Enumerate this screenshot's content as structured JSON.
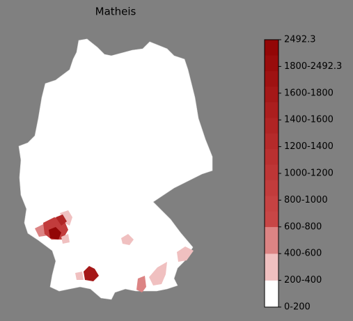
{
  "chart_data": {
    "type": "choropleth",
    "title": "Matheis",
    "colorbar": {
      "labels": [
        "0-200",
        "200-400",
        "400-600",
        "600-800",
        "800-1000",
        "1000-1200",
        "1200-1400",
        "1400-1600",
        "1600-1800",
        "1800-2492.3",
        "2492.3"
      ],
      "colors": [
        "#ffffff",
        "#f0c0c0",
        "#dc8484",
        "#c84646",
        "#c64242",
        "#c23c3c",
        "#be3636",
        "#ba3030",
        "#b52a2a",
        "#b02424",
        "#ab1e1e",
        "#a51818",
        "#9f1212",
        "#990c0c",
        "#930606"
      ]
    }
  }
}
